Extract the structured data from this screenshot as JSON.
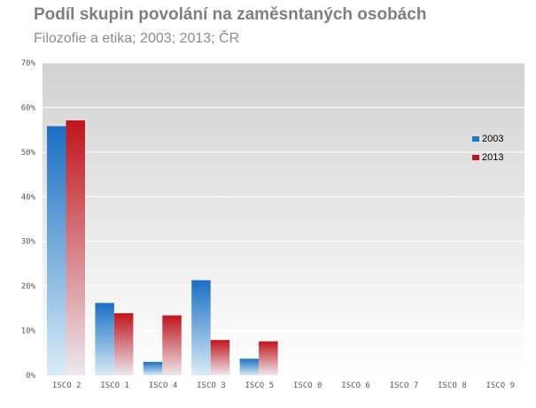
{
  "chart_data": {
    "type": "bar",
    "title": "Podíl skupin povolání na zaměsntaných osobách",
    "subtitle": "Filozofie a etika; 2003; 2013; ČR",
    "xlabel": "",
    "ylabel": "",
    "categories": [
      "ISCO 2",
      "ISCO 1",
      "ISCO 4",
      "ISCO 3",
      "ISCO 5",
      "ISCO 0",
      "ISCO 6",
      "ISCO 7",
      "ISCO 8",
      "ISCO 9"
    ],
    "series": [
      {
        "name": "2003",
        "color": "#1f78c8",
        "values": [
          55.8,
          16.2,
          3.0,
          21.3,
          3.7,
          0,
          0,
          0,
          0,
          0
        ]
      },
      {
        "name": "2013",
        "color": "#c0141c",
        "values": [
          57.1,
          13.9,
          13.4,
          7.9,
          7.6,
          0,
          0,
          0,
          0,
          0
        ]
      }
    ],
    "ylim": [
      0,
      70
    ],
    "yticks": [
      "0%",
      "10%",
      "20%",
      "30%",
      "40%",
      "50%",
      "60%",
      "70%"
    ],
    "grid": true,
    "legend": "right"
  }
}
